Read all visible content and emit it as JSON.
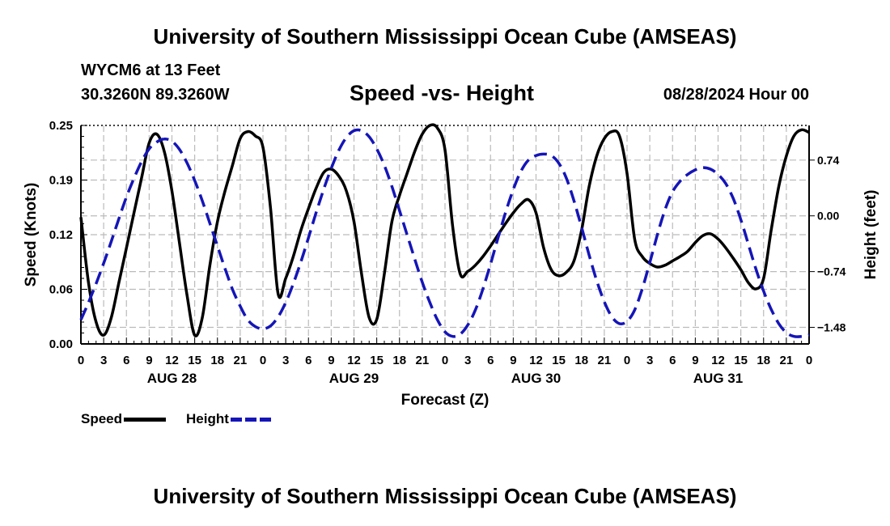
{
  "header": {
    "title": "University of Southern Mississippi Ocean Cube (AMSEAS)",
    "station": "WYCM6 at 13 Feet",
    "coords": "30.3260N  89.3260W",
    "subtitle": "Speed -vs- Height",
    "datetime": "08/28/2024 Hour 00"
  },
  "footer": {
    "title": "University of Southern Mississippi Ocean Cube (AMSEAS)"
  },
  "legend": {
    "speed_label": "Speed",
    "height_label": "Height"
  },
  "colors": {
    "speed": "#000000",
    "height": "#1515b8",
    "grid": "#bbbbbb"
  },
  "chart_data": {
    "type": "line",
    "xlabel": "Forecast (Z)",
    "ylabel": "Speed (Knots)",
    "y2label": "Height (feet)",
    "xlim": [
      0,
      96
    ],
    "ylim": [
      0,
      0.25
    ],
    "y2lim": [
      -1.7,
      1.2
    ],
    "x_ticks": [
      0,
      3,
      6,
      9,
      12,
      15,
      18,
      21,
      24,
      27,
      30,
      33,
      36,
      39,
      42,
      45,
      48,
      51,
      54,
      57,
      60,
      63,
      66,
      69,
      72,
      75,
      78,
      81,
      84,
      87,
      90,
      93,
      96
    ],
    "x_tick_labels": [
      "0",
      "3",
      "6",
      "9",
      "12",
      "15",
      "18",
      "21",
      "0",
      "3",
      "6",
      "9",
      "12",
      "15",
      "18",
      "21",
      "0",
      "3",
      "6",
      "9",
      "12",
      "15",
      "18",
      "21",
      "0",
      "3",
      "6",
      "9",
      "12",
      "15",
      "18",
      "21",
      "0"
    ],
    "date_labels": [
      {
        "x": 12,
        "label": "AUG 28"
      },
      {
        "x": 36,
        "label": "AUG 29"
      },
      {
        "x": 60,
        "label": "AUG 30"
      },
      {
        "x": 84,
        "label": "AUG 31"
      }
    ],
    "y_ticks": [
      0,
      0.0625,
      0.125,
      0.1875,
      0.25
    ],
    "y_tick_labels": [
      "0.00",
      "0.06",
      "0.12",
      "0.19",
      "0.25"
    ],
    "y2_ticks": [
      0.74,
      0.0,
      -0.74,
      -1.48
    ],
    "y2_tick_labels": [
      "0.74",
      "0.00",
      "-0.74",
      "-1.48"
    ],
    "series": [
      {
        "name": "Speed",
        "axis": "left",
        "style": "solid",
        "x": [
          0,
          1,
          2,
          3,
          4,
          5,
          6,
          7,
          8,
          9,
          10,
          11,
          12,
          13,
          14,
          15,
          16,
          17,
          18,
          19,
          20,
          21,
          22,
          23,
          24,
          25,
          26,
          27,
          28,
          29,
          30,
          31,
          32,
          33,
          34,
          35,
          36,
          37,
          38,
          39,
          40,
          41,
          42,
          43,
          44,
          45,
          46,
          47,
          48,
          49,
          50,
          51,
          52,
          53,
          54,
          55,
          56,
          57,
          58,
          59,
          60,
          61,
          62,
          63,
          64,
          65,
          66,
          67,
          68,
          69,
          70,
          71,
          72,
          73,
          74,
          75,
          76,
          77,
          78,
          79,
          80,
          81,
          82,
          83,
          84,
          85,
          86,
          87,
          88,
          89,
          90,
          91,
          92,
          93,
          94,
          95,
          96
        ],
        "values": [
          0.145,
          0.07,
          0.025,
          0.01,
          0.03,
          0.07,
          0.11,
          0.15,
          0.19,
          0.23,
          0.24,
          0.22,
          0.175,
          0.115,
          0.055,
          0.01,
          0.03,
          0.09,
          0.14,
          0.175,
          0.205,
          0.235,
          0.243,
          0.238,
          0.225,
          0.155,
          0.057,
          0.075,
          0.1,
          0.13,
          0.155,
          0.178,
          0.196,
          0.2,
          0.192,
          0.175,
          0.14,
          0.08,
          0.03,
          0.028,
          0.08,
          0.14,
          0.17,
          0.195,
          0.22,
          0.24,
          0.25,
          0.247,
          0.222,
          0.135,
          0.08,
          0.083,
          0.09,
          0.1,
          0.112,
          0.125,
          0.138,
          0.15,
          0.16,
          0.165,
          0.15,
          0.11,
          0.085,
          0.078,
          0.082,
          0.095,
          0.13,
          0.18,
          0.215,
          0.235,
          0.243,
          0.238,
          0.195,
          0.12,
          0.1,
          0.092,
          0.088,
          0.09,
          0.095,
          0.1,
          0.106,
          0.116,
          0.124,
          0.126,
          0.12,
          0.11,
          0.098,
          0.085,
          0.07,
          0.063,
          0.075,
          0.13,
          0.18,
          0.215,
          0.238,
          0.245,
          0.242
        ]
      },
      {
        "name": "Height",
        "axis": "right",
        "style": "dashed",
        "x": [
          0,
          1,
          2,
          3,
          4,
          5,
          6,
          7,
          8,
          9,
          10,
          11,
          12,
          13,
          14,
          15,
          16,
          17,
          18,
          19,
          20,
          21,
          22,
          23,
          24,
          25,
          26,
          27,
          28,
          29,
          30,
          31,
          32,
          33,
          34,
          35,
          36,
          37,
          38,
          39,
          40,
          41,
          42,
          43,
          44,
          45,
          46,
          47,
          48,
          49,
          50,
          51,
          52,
          53,
          54,
          55,
          56,
          57,
          58,
          59,
          60,
          61,
          62,
          63,
          64,
          65,
          66,
          67,
          68,
          69,
          70,
          71,
          72,
          73,
          74,
          75,
          76,
          77,
          78,
          79,
          80,
          81,
          82,
          83,
          84,
          85,
          86,
          87,
          88,
          89,
          90,
          91,
          92,
          93,
          94,
          95,
          96
        ],
        "values": [
          -1.38,
          -1.15,
          -0.9,
          -0.63,
          -0.34,
          -0.04,
          0.25,
          0.5,
          0.72,
          0.89,
          0.98,
          1.02,
          0.99,
          0.88,
          0.7,
          0.47,
          0.2,
          -0.1,
          -0.4,
          -0.7,
          -0.98,
          -1.2,
          -1.38,
          -1.47,
          -1.5,
          -1.46,
          -1.34,
          -1.15,
          -0.9,
          -0.61,
          -0.29,
          0.04,
          0.35,
          0.63,
          0.87,
          1.04,
          1.13,
          1.13,
          1.05,
          0.89,
          0.67,
          0.39,
          0.07,
          -0.25,
          -0.57,
          -0.88,
          -1.15,
          -1.38,
          -1.54,
          -1.6,
          -1.57,
          -1.45,
          -1.25,
          -0.97,
          -0.64,
          -0.29,
          0.05,
          0.35,
          0.59,
          0.74,
          0.8,
          0.82,
          0.8,
          0.7,
          0.5,
          0.2,
          -0.15,
          -0.52,
          -0.86,
          -1.14,
          -1.34,
          -1.43,
          -1.4,
          -1.25,
          -0.97,
          -0.62,
          -0.25,
          0.08,
          0.32,
          0.46,
          0.55,
          0.61,
          0.64,
          0.62,
          0.55,
          0.43,
          0.23,
          -0.05,
          -0.38,
          -0.71,
          -1.0,
          -1.24,
          -1.43,
          -1.55,
          -1.6,
          -1.6,
          -1.58
        ]
      }
    ]
  }
}
